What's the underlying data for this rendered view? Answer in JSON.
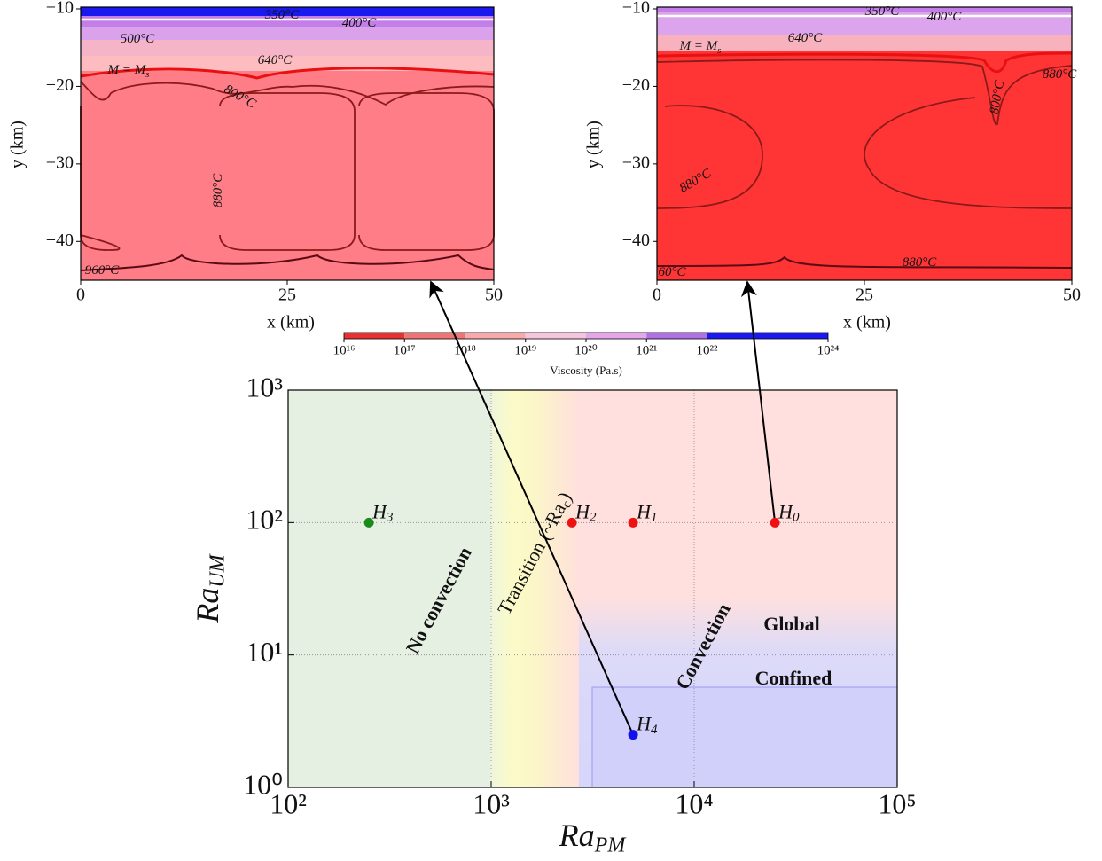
{
  "chart_data": [
    {
      "type": "contour",
      "xlabel": "x (km)",
      "ylabel": "y (km)",
      "xlim": [
        0,
        50
      ],
      "ylim": [
        -45,
        -10
      ],
      "xticks": [
        0,
        25,
        50
      ],
      "yticks": [
        {
          "value": -10,
          "label": "−10"
        },
        {
          "value": -20,
          "label": "−20"
        },
        {
          "value": -30,
          "label": "−30"
        },
        {
          "value": -40,
          "label": "−40"
        }
      ],
      "contour_labels": [
        {
          "text": "350°C"
        },
        {
          "text": "400°C"
        },
        {
          "text": "500°C"
        },
        {
          "text": "640°C"
        },
        {
          "text": "M = M",
          "sub": "s"
        },
        {
          "text": "800°C"
        },
        {
          "text": "880°C"
        },
        {
          "text": "960°C"
        }
      ]
    },
    {
      "type": "contour",
      "xlabel": "x (km)",
      "ylabel": "y (km)",
      "xlim": [
        0,
        50
      ],
      "ylim": [
        -45,
        -10
      ],
      "xticks": [
        0,
        25,
        50
      ],
      "yticks": [
        {
          "value": -10,
          "label": "−10"
        },
        {
          "value": -20,
          "label": "−20"
        },
        {
          "value": -30,
          "label": "−30"
        },
        {
          "value": -40,
          "label": "−40"
        }
      ],
      "contour_labels": [
        {
          "text": "350°C"
        },
        {
          "text": "400°C"
        },
        {
          "text": "640°C"
        },
        {
          "text": "M = M",
          "sub": "s"
        },
        {
          "text": "880°C"
        },
        {
          "text": "800°C"
        },
        {
          "text": "880°C"
        },
        {
          "text": "880°C"
        },
        {
          "text": "60°C"
        }
      ]
    },
    {
      "type": "colorbar",
      "label": "Viscosity (Pa.s)",
      "log_scale": true,
      "xlim": [
        1e+16,
        1e+24
      ],
      "xticks": [
        {
          "value": 1e+16,
          "label": "10¹⁶"
        },
        {
          "value": 1e+17,
          "label": "10¹⁷"
        },
        {
          "value": 1e+18,
          "label": "10¹⁸"
        },
        {
          "value": 1e+19,
          "label": "10¹⁹"
        },
        {
          "value": 1e+20,
          "label": "10²⁰"
        },
        {
          "value": 1e+21,
          "label": "10²¹"
        },
        {
          "value": 1e+22,
          "label": "10²²"
        },
        {
          "value": 1e+24,
          "label": "10²⁴"
        }
      ],
      "colors": [
        "#e83232",
        "#f07474",
        "#f8aaaa",
        "#f6c4dc",
        "#e6a6ec",
        "#b070e6",
        "#1a1af0"
      ]
    },
    {
      "type": "scatter",
      "log_scale": true,
      "grid": true,
      "xlabel": {
        "text": "Ra",
        "sub": "PM"
      },
      "ylabel": {
        "text": "Ra",
        "sub": "UM"
      },
      "xlim": [
        100,
        100000
      ],
      "ylim": [
        1,
        1000
      ],
      "xticks": [
        {
          "value": 100,
          "label": "10²"
        },
        {
          "value": 1000,
          "label": "10³"
        },
        {
          "value": 10000,
          "label": "10⁴"
        },
        {
          "value": 100000,
          "label": "10⁵"
        }
      ],
      "yticks": [
        {
          "value": 1,
          "label": "10⁰"
        },
        {
          "value": 10,
          "label": "10¹"
        },
        {
          "value": 100,
          "label": "10²"
        },
        {
          "value": 1000,
          "label": "10³"
        }
      ],
      "points": [
        {
          "text": "H",
          "sub": "3",
          "x": 250,
          "y": 100,
          "color": "#1a8a1a"
        },
        {
          "text": "H",
          "sub": "2",
          "x": 2500,
          "y": 100,
          "color": "#ee1111"
        },
        {
          "text": "H",
          "sub": "1",
          "x": 5000,
          "y": 100,
          "color": "#ee1111"
        },
        {
          "text": "H",
          "sub": "0",
          "x": 25000,
          "y": 100,
          "color": "#ee1111"
        },
        {
          "text": "H",
          "sub": "4",
          "x": 5000,
          "y": 2.5,
          "color": "#1111ee"
        }
      ],
      "annotations": [
        {
          "text": "No convection"
        },
        {
          "text": "Transition (~Ra",
          "sub": "c",
          "tail": ")"
        },
        {
          "text": "Convection"
        },
        {
          "text": "Global"
        },
        {
          "text": "Confined"
        }
      ]
    }
  ]
}
